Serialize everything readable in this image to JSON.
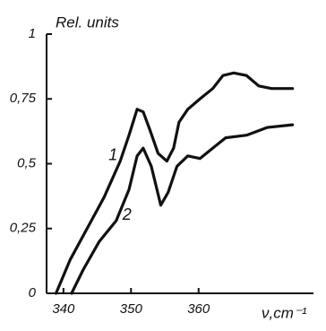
{
  "chart_data": {
    "type": "line",
    "y_label": "Rel. units",
    "x_label": "ν,cm⁻¹",
    "xlim": [
      337.5,
      377
    ],
    "xticks": [
      340,
      350,
      360
    ],
    "ylim": [
      0,
      1
    ],
    "yticks": [
      0,
      {
        "value": 0.25,
        "label": "0,25"
      },
      {
        "value": 0.5,
        "label": "0,5"
      },
      {
        "value": 0.75,
        "label": "0,75"
      },
      1
    ],
    "series": [
      {
        "name": "1",
        "color": "#111111",
        "x": [
          338.9,
          341.0,
          343.5,
          346.0,
          348.4,
          349.7,
          350.9,
          351.8,
          352.8,
          354.0,
          355.3,
          356.3,
          357.1,
          358.4,
          360.2,
          362.1,
          363.6,
          365.2,
          367.1,
          368.9,
          370.8,
          373.9
        ],
        "values": [
          0,
          0.13,
          0.25,
          0.37,
          0.51,
          0.61,
          0.71,
          0.7,
          0.63,
          0.54,
          0.51,
          0.56,
          0.66,
          0.71,
          0.75,
          0.79,
          0.84,
          0.85,
          0.84,
          0.8,
          0.79,
          0.79
        ]
      },
      {
        "name": "2",
        "color": "#111111",
        "x": [
          341.2,
          342.9,
          345.3,
          347.8,
          349.7,
          350.9,
          351.8,
          353.0,
          354.4,
          355.5,
          356.8,
          358.4,
          360.2,
          362.1,
          364.0,
          367.1,
          370.2,
          373.9
        ],
        "values": [
          0,
          0.09,
          0.2,
          0.28,
          0.4,
          0.53,
          0.56,
          0.49,
          0.34,
          0.39,
          0.49,
          0.53,
          0.52,
          0.56,
          0.6,
          0.61,
          0.64,
          0.65
        ]
      }
    ]
  }
}
